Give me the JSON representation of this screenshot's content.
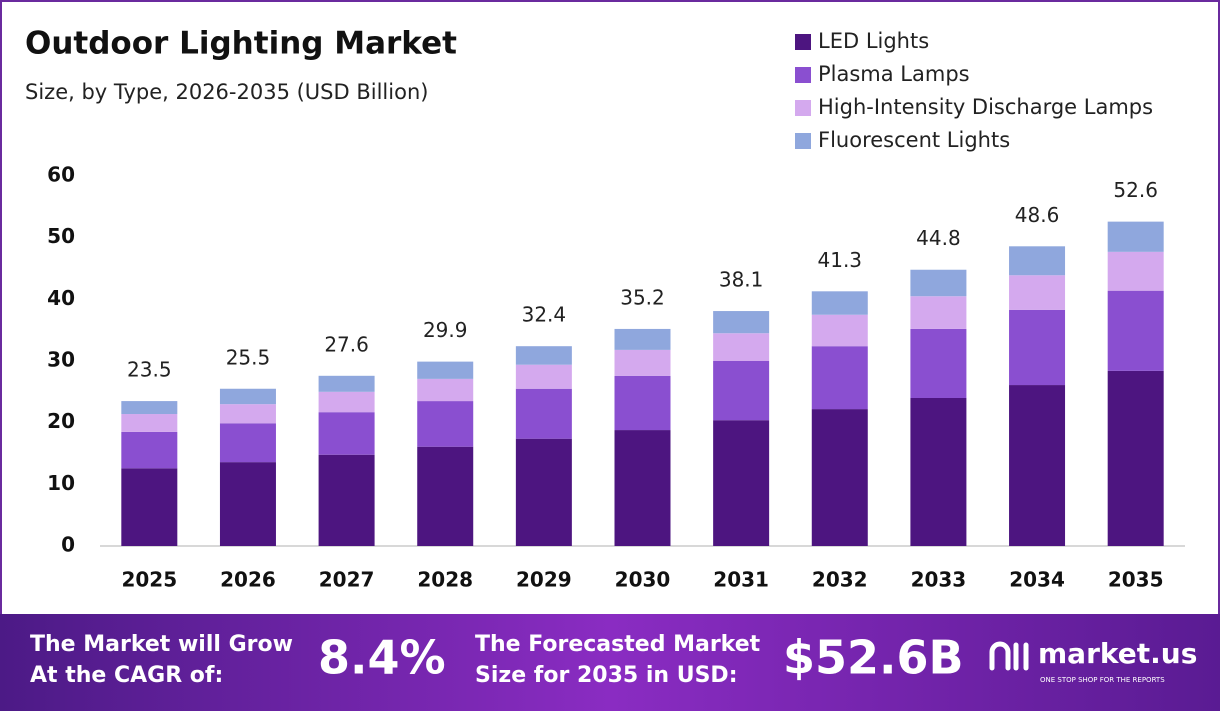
{
  "chart_data": {
    "type": "stacked_bar",
    "title": "Outdoor Lighting Market",
    "subtitle": "Size, by Type, 2026-2035 (USD Billion)",
    "categories": [
      "2025",
      "2026",
      "2027",
      "2028",
      "2029",
      "2030",
      "2031",
      "2032",
      "2033",
      "2034",
      "2035"
    ],
    "series": [
      {
        "name": "LED Lights",
        "color": "#4d1580",
        "values": [
          12.6,
          13.6,
          14.8,
          16.1,
          17.4,
          18.8,
          20.4,
          22.2,
          24.0,
          26.1,
          28.4
        ]
      },
      {
        "name": "Plasma Lamps",
        "color": "#8a4fd0",
        "values": [
          5.9,
          6.3,
          6.9,
          7.4,
          8.1,
          8.8,
          9.6,
          10.2,
          11.2,
          12.2,
          13.0
        ]
      },
      {
        "name": "High-Intensity Discharge Lamps",
        "color": "#d4a9ee",
        "values": [
          2.9,
          3.1,
          3.3,
          3.6,
          3.9,
          4.2,
          4.5,
          5.1,
          5.3,
          5.6,
          6.3
        ]
      },
      {
        "name": "Fluorescent Lights",
        "color": "#8fa7dd",
        "values": [
          2.1,
          2.5,
          2.6,
          2.8,
          3.0,
          3.4,
          3.6,
          3.8,
          4.3,
          4.7,
          4.9
        ]
      }
    ],
    "totals": [
      23.5,
      25.5,
      27.6,
      29.9,
      32.4,
      35.2,
      38.1,
      41.3,
      44.8,
      48.6,
      52.6
    ],
    "ylim": [
      0,
      60
    ],
    "yticks": [
      0,
      10,
      20,
      30,
      40,
      50,
      60
    ],
    "grid": false
  },
  "footer": {
    "cagr_label": [
      "The Market will Grow",
      "At the CAGR of:"
    ],
    "cagr_value": "8.4%",
    "forecast_label": [
      "The Forecasted Market",
      "Size for 2035 in USD:"
    ],
    "forecast_value": "$52.6B",
    "brand": "market.us",
    "tagline": "ONE STOP SHOP FOR THE REPORTS"
  }
}
